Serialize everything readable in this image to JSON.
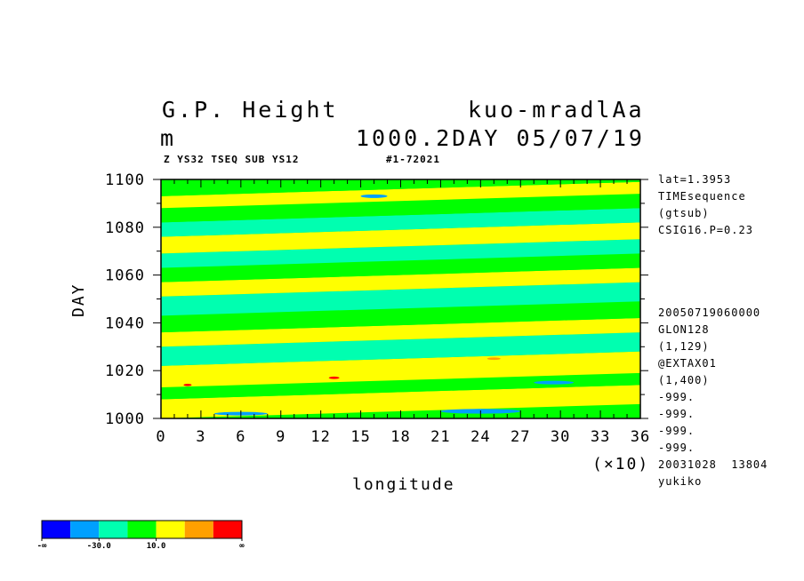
{
  "header": {
    "title_left": "G.P. Height",
    "title_right": "kuo-mradlAa",
    "units": "m",
    "level_date": "1000.2DAY 05/07/19",
    "subtitle_left": "Z YS32 TSEQ SUB YS12",
    "subtitle_right": "#1-72021"
  },
  "side_info": {
    "top": [
      "lat=1.3953",
      "TIMEsequence",
      "(gtsub)",
      "CSIG16.P=0.23"
    ],
    "bottom": [
      "20050719060000",
      "GLON128",
      "(1,129)",
      "@EXTAX01",
      "(1,400)",
      "-999.",
      "-999.",
      "-999.",
      "-999.",
      "20031028  13804",
      "yukiko"
    ]
  },
  "colorbar": {
    "colors": [
      "#0000ff",
      "#00a0ff",
      "#00ffb0",
      "#00ff00",
      "#ffff00",
      "#ffa000",
      "#ff0000"
    ],
    "labels": [
      "-∞",
      "-30.0",
      "10.0",
      "∞"
    ]
  },
  "chart_data": {
    "type": "heatmap",
    "title": "G.P. Height",
    "xlabel": "longitude",
    "xlabel_multiplier": "(×10)",
    "ylabel": "DAY",
    "x_ticks": [
      "0",
      "3",
      "6",
      "9",
      "12",
      "15",
      "18",
      "21",
      "24",
      "27",
      "30",
      "33",
      "36"
    ],
    "y_ticks": [
      "1000",
      "1020",
      "1040",
      "1060",
      "1080",
      "1100"
    ],
    "xlim": [
      0,
      360
    ],
    "ylim": [
      1000,
      1100
    ],
    "bands": [
      {
        "y0": 1000,
        "y1": 1003,
        "color": "#00ff00"
      },
      {
        "y0": 1003,
        "y1": 1011,
        "color": "#ffff00"
      },
      {
        "y0": 1011,
        "y1": 1016,
        "color": "#00ff00"
      },
      {
        "y0": 1016,
        "y1": 1025,
        "color": "#ffff00"
      },
      {
        "y0": 1025,
        "y1": 1033,
        "color": "#00ffb0"
      },
      {
        "y0": 1033,
        "y1": 1039,
        "color": "#ffff00"
      },
      {
        "y0": 1039,
        "y1": 1046,
        "color": "#00ff00"
      },
      {
        "y0": 1046,
        "y1": 1054,
        "color": "#00ffb0"
      },
      {
        "y0": 1054,
        "y1": 1060,
        "color": "#ffff00"
      },
      {
        "y0": 1060,
        "y1": 1066,
        "color": "#00ff00"
      },
      {
        "y0": 1066,
        "y1": 1072,
        "color": "#00ffb0"
      },
      {
        "y0": 1072,
        "y1": 1079,
        "color": "#ffff00"
      },
      {
        "y0": 1079,
        "y1": 1085,
        "color": "#00ffb0"
      },
      {
        "y0": 1085,
        "y1": 1091,
        "color": "#00ff00"
      },
      {
        "y0": 1091,
        "y1": 1096,
        "color": "#ffff00"
      },
      {
        "y0": 1096,
        "y1": 1100,
        "color": "#00ff00"
      }
    ],
    "band_tilt_days": 6,
    "spots": [
      {
        "x": 240,
        "y": 1003,
        "w": 60,
        "h": 2,
        "color": "#00a0ff"
      },
      {
        "x": 60,
        "y": 1002,
        "w": 40,
        "h": 1.5,
        "color": "#00a0ff"
      },
      {
        "x": 295,
        "y": 1015,
        "w": 30,
        "h": 1.5,
        "color": "#00a0ff"
      },
      {
        "x": 130,
        "y": 1017,
        "w": 8,
        "h": 1,
        "color": "#ff0000"
      },
      {
        "x": 250,
        "y": 1025,
        "w": 10,
        "h": 1,
        "color": "#ffa000"
      },
      {
        "x": 20,
        "y": 1014,
        "w": 6,
        "h": 1,
        "color": "#ff0000"
      },
      {
        "x": 160,
        "y": 1093,
        "w": 20,
        "h": 1.5,
        "color": "#00a0ff"
      }
    ]
  }
}
